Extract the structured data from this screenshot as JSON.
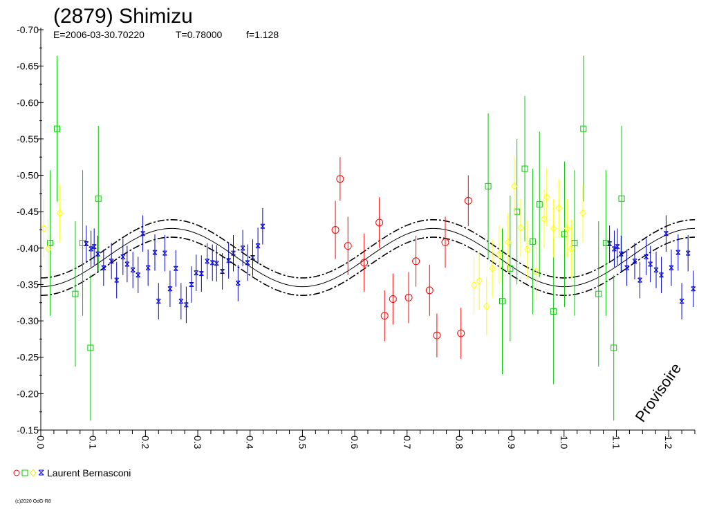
{
  "header": {
    "title": "(2879) Shimizu",
    "epoch": "E=2006-03-30.70220",
    "period": "T=0.78000",
    "f": "f=1.128"
  },
  "legend": {
    "label": "Laurent Bernasconi"
  },
  "copyright": "(c)2020 OdG-R8",
  "watermark": "Provisoire",
  "chart_data": {
    "type": "scatter",
    "xlabel": "",
    "ylabel": "",
    "xlim": [
      0.0,
      1.25
    ],
    "ylim": [
      -0.7,
      -0.15
    ],
    "y_inverted": true,
    "x_ticks": [
      "0.0",
      "0.1",
      "0.2",
      "0.3",
      "0.4",
      "0.5",
      "0.6",
      "0.7",
      "0.8",
      "0.9",
      "1.0",
      "1.1",
      "1.2"
    ],
    "y_ticks": [
      "-0.70",
      "-0.65",
      "-0.60",
      "-0.55",
      "-0.50",
      "-0.45",
      "-0.40",
      "-0.35",
      "-0.30",
      "-0.25",
      "-0.20",
      "-0.15"
    ],
    "fit_curve": {
      "mean": -0.387,
      "amplitude": 0.04,
      "phase_of_faint_extremum": 0.25,
      "band": 0.012
    },
    "series": [
      {
        "color": "#ff0000",
        "marker": "circle",
        "points": [
          [
            0.563,
            -0.425,
            0.04
          ],
          [
            0.572,
            -0.495,
            0.03
          ],
          [
            0.587,
            -0.403,
            0.04
          ],
          [
            0.618,
            -0.38,
            0.04
          ],
          [
            0.647,
            -0.435,
            0.035
          ],
          [
            0.657,
            -0.307,
            0.035
          ],
          [
            0.673,
            -0.33,
            0.035
          ],
          [
            0.703,
            -0.332,
            0.035
          ],
          [
            0.717,
            -0.382,
            0.035
          ],
          [
            0.743,
            -0.342,
            0.035
          ],
          [
            0.757,
            -0.28,
            0.03
          ],
          [
            0.773,
            -0.408,
            0.035
          ],
          [
            0.803,
            -0.283,
            0.035
          ],
          [
            0.817,
            -0.465,
            0.035
          ]
        ]
      },
      {
        "color": "#00cc00",
        "marker": "square",
        "points": [
          [
            0.018,
            -0.407,
            0.1
          ],
          [
            0.031,
            -0.564,
            0.1
          ],
          [
            0.066,
            -0.337,
            0.1
          ],
          [
            0.08,
            -0.407,
            0.1
          ],
          [
            0.095,
            -0.263,
            0.1
          ],
          [
            0.11,
            -0.468,
            0.1
          ],
          [
            0.855,
            -0.485,
            0.1
          ],
          [
            0.882,
            -0.327,
            0.1
          ],
          [
            0.897,
            -0.372,
            0.1
          ],
          [
            0.91,
            -0.45,
            0.1
          ],
          [
            0.925,
            -0.509,
            0.1
          ],
          [
            0.94,
            -0.409,
            0.1
          ],
          [
            0.953,
            -0.46,
            0.1
          ],
          [
            0.98,
            -0.313,
            0.1
          ],
          [
            1.001,
            -0.419,
            0.1
          ],
          [
            1.02,
            -0.407,
            0.1
          ],
          [
            1.037,
            -0.564,
            0.1
          ],
          [
            1.066,
            -0.337,
            0.1
          ],
          [
            1.08,
            -0.407,
            0.1
          ],
          [
            1.095,
            -0.263,
            0.1
          ],
          [
            1.11,
            -0.468,
            0.1
          ]
        ]
      },
      {
        "color": "#ffff00",
        "marker": "diamond",
        "points": [
          [
            0.006,
            -0.427,
            0.04
          ],
          [
            0.014,
            -0.399,
            0.04
          ],
          [
            0.036,
            -0.448,
            0.04
          ],
          [
            0.828,
            -0.349,
            0.04
          ],
          [
            0.838,
            -0.355,
            0.04
          ],
          [
            0.852,
            -0.32,
            0.04
          ],
          [
            0.863,
            -0.372,
            0.04
          ],
          [
            0.876,
            -0.391,
            0.04
          ],
          [
            0.893,
            -0.408,
            0.04
          ],
          [
            0.905,
            -0.485,
            0.04
          ],
          [
            0.917,
            -0.428,
            0.04
          ],
          [
            0.93,
            -0.398,
            0.04
          ],
          [
            0.947,
            -0.368,
            0.04
          ],
          [
            0.962,
            -0.44,
            0.04
          ],
          [
            0.967,
            -0.47,
            0.04
          ],
          [
            0.98,
            -0.427,
            0.04
          ],
          [
            0.99,
            -0.455,
            0.04
          ],
          [
            1.006,
            -0.427,
            0.04
          ],
          [
            1.014,
            -0.399,
            0.04
          ],
          [
            1.036,
            -0.448,
            0.04
          ]
        ]
      },
      {
        "color": "#0000cc",
        "marker": "cross",
        "points": [
          [
            0.087,
            -0.406,
            0.025
          ],
          [
            0.096,
            -0.399,
            0.025
          ],
          [
            0.102,
            -0.402,
            0.025
          ],
          [
            0.109,
            -0.392,
            0.025
          ],
          [
            0.12,
            -0.373,
            0.025
          ],
          [
            0.135,
            -0.382,
            0.025
          ],
          [
            0.145,
            -0.356,
            0.025
          ],
          [
            0.157,
            -0.388,
            0.025
          ],
          [
            0.165,
            -0.378,
            0.025
          ],
          [
            0.176,
            -0.37,
            0.025
          ],
          [
            0.186,
            -0.363,
            0.025
          ],
          [
            0.195,
            -0.42,
            0.025
          ],
          [
            0.205,
            -0.373,
            0.025
          ],
          [
            0.218,
            -0.394,
            0.025
          ],
          [
            0.225,
            -0.327,
            0.025
          ],
          [
            0.237,
            -0.393,
            0.025
          ],
          [
            0.247,
            -0.344,
            0.025
          ],
          [
            0.258,
            -0.372,
            0.025
          ],
          [
            0.268,
            -0.327,
            0.025
          ],
          [
            0.278,
            -0.322,
            0.025
          ],
          [
            0.288,
            -0.35,
            0.025
          ],
          [
            0.297,
            -0.366,
            0.025
          ],
          [
            0.307,
            -0.365,
            0.025
          ],
          [
            0.318,
            -0.382,
            0.025
          ],
          [
            0.328,
            -0.38,
            0.025
          ],
          [
            0.336,
            -0.379,
            0.025
          ],
          [
            0.347,
            -0.368,
            0.025
          ],
          [
            0.359,
            -0.383,
            0.025
          ],
          [
            0.368,
            -0.393,
            0.025
          ],
          [
            0.377,
            -0.352,
            0.025
          ],
          [
            0.386,
            -0.4,
            0.025
          ],
          [
            0.395,
            -0.38,
            0.025
          ],
          [
            0.405,
            -0.387,
            0.025
          ],
          [
            0.415,
            -0.403,
            0.025
          ],
          [
            0.424,
            -0.43,
            0.025
          ],
          [
            1.087,
            -0.406,
            0.025
          ],
          [
            1.096,
            -0.399,
            0.025
          ],
          [
            1.102,
            -0.402,
            0.025
          ],
          [
            1.109,
            -0.392,
            0.025
          ],
          [
            1.12,
            -0.373,
            0.025
          ],
          [
            1.135,
            -0.382,
            0.025
          ],
          [
            1.145,
            -0.356,
            0.025
          ],
          [
            1.157,
            -0.388,
            0.025
          ],
          [
            1.165,
            -0.378,
            0.025
          ],
          [
            1.176,
            -0.37,
            0.025
          ],
          [
            1.186,
            -0.363,
            0.025
          ],
          [
            1.195,
            -0.42,
            0.025
          ],
          [
            1.205,
            -0.373,
            0.025
          ],
          [
            1.218,
            -0.394,
            0.025
          ],
          [
            1.225,
            -0.327,
            0.025
          ],
          [
            1.237,
            -0.393,
            0.025
          ],
          [
            1.247,
            -0.344,
            0.025
          ]
        ]
      }
    ]
  }
}
